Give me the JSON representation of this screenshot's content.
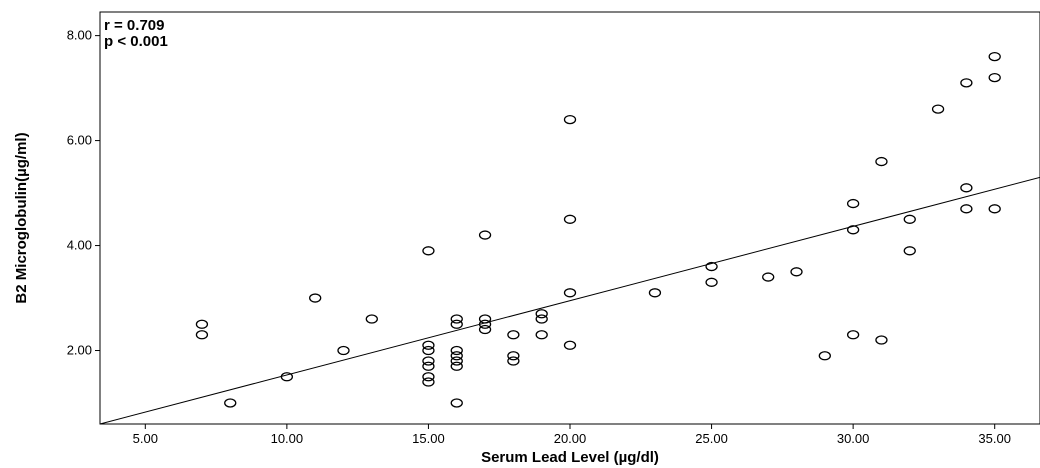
{
  "chart_data": {
    "type": "scatter",
    "title": "",
    "xlabel": "Serum Lead Level (µg/dl)",
    "ylabel": "B2 Microglobulin(µg/ml)",
    "annotations": [
      "r = 0.709",
      "p < 0.001"
    ],
    "xlim": [
      3.4,
      36.6
    ],
    "ylim": [
      0.6,
      8.45
    ],
    "x_ticks": [
      5,
      10,
      15,
      20,
      25,
      30,
      35
    ],
    "x_tick_labels": [
      "5.00",
      "10.00",
      "15.00",
      "20.00",
      "25.00",
      "30.00",
      "35.00"
    ],
    "y_ticks": [
      2,
      4,
      6,
      8
    ],
    "y_tick_labels": [
      "2.00",
      "4.00",
      "6.00",
      "8.00"
    ],
    "grid": false,
    "marker": "hollow-circle",
    "fit_line": {
      "type": "linear",
      "from": [
        3.4,
        0.5
      ],
      "to": [
        36.6,
        5.3
      ]
    },
    "points": [
      {
        "x": 7,
        "y": 2.5
      },
      {
        "x": 7,
        "y": 2.3
      },
      {
        "x": 8,
        "y": 1.0
      },
      {
        "x": 10,
        "y": 1.5
      },
      {
        "x": 11,
        "y": 3.0
      },
      {
        "x": 12,
        "y": 2.0
      },
      {
        "x": 13,
        "y": 2.6
      },
      {
        "x": 15,
        "y": 3.9
      },
      {
        "x": 15,
        "y": 2.1
      },
      {
        "x": 15,
        "y": 2.0
      },
      {
        "x": 15,
        "y": 1.8
      },
      {
        "x": 15,
        "y": 1.7
      },
      {
        "x": 15,
        "y": 1.5
      },
      {
        "x": 15,
        "y": 1.4
      },
      {
        "x": 16,
        "y": 2.6
      },
      {
        "x": 16,
        "y": 2.5
      },
      {
        "x": 16,
        "y": 2.0
      },
      {
        "x": 16,
        "y": 1.9
      },
      {
        "x": 16,
        "y": 1.8
      },
      {
        "x": 16,
        "y": 1.7
      },
      {
        "x": 16,
        "y": 1.0
      },
      {
        "x": 17,
        "y": 4.2
      },
      {
        "x": 17,
        "y": 2.6
      },
      {
        "x": 17,
        "y": 2.5
      },
      {
        "x": 17,
        "y": 2.4
      },
      {
        "x": 18,
        "y": 2.3
      },
      {
        "x": 18,
        "y": 1.9
      },
      {
        "x": 18,
        "y": 1.8
      },
      {
        "x": 19,
        "y": 2.7
      },
      {
        "x": 19,
        "y": 2.6
      },
      {
        "x": 19,
        "y": 2.3
      },
      {
        "x": 20,
        "y": 6.4
      },
      {
        "x": 20,
        "y": 4.5
      },
      {
        "x": 20,
        "y": 3.1
      },
      {
        "x": 20,
        "y": 2.1
      },
      {
        "x": 23,
        "y": 3.1
      },
      {
        "x": 25,
        "y": 3.6
      },
      {
        "x": 25,
        "y": 3.3
      },
      {
        "x": 27,
        "y": 3.4
      },
      {
        "x": 28,
        "y": 3.5
      },
      {
        "x": 29,
        "y": 1.9
      },
      {
        "x": 30,
        "y": 4.8
      },
      {
        "x": 30,
        "y": 4.3
      },
      {
        "x": 30,
        "y": 2.3
      },
      {
        "x": 31,
        "y": 5.6
      },
      {
        "x": 31,
        "y": 2.2
      },
      {
        "x": 32,
        "y": 4.5
      },
      {
        "x": 32,
        "y": 3.9
      },
      {
        "x": 33,
        "y": 6.6
      },
      {
        "x": 34,
        "y": 7.1
      },
      {
        "x": 34,
        "y": 5.1
      },
      {
        "x": 34,
        "y": 4.7
      },
      {
        "x": 35,
        "y": 7.6
      },
      {
        "x": 35,
        "y": 7.2
      },
      {
        "x": 35,
        "y": 4.7
      }
    ]
  }
}
